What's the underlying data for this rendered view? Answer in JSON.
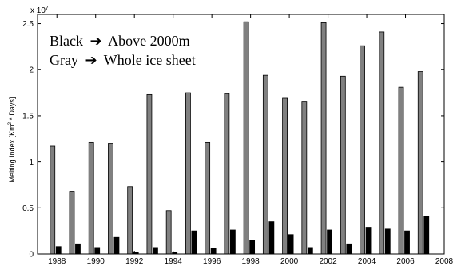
{
  "chart_data": {
    "type": "bar",
    "ylabel_main": "Melting Index [Km",
    "ylabel_sup": "2",
    "ylabel_tail": " * Days]",
    "y_exponent_base": "x 10",
    "y_exponent_power": "7",
    "xlim": [
      1987,
      2008
    ],
    "ylim": [
      0,
      2.6
    ],
    "x_ticks": [
      1988,
      1990,
      1992,
      1994,
      1996,
      1998,
      2000,
      2002,
      2004,
      2006,
      2008
    ],
    "y_ticks": [
      0,
      0.5,
      1,
      1.5,
      2,
      2.5
    ],
    "y_tick_labels": [
      "0",
      "0.5",
      "1",
      "1.5",
      "2",
      "2.5"
    ],
    "years": [
      1988,
      1989,
      1990,
      1991,
      1992,
      1993,
      1994,
      1995,
      1996,
      1997,
      1998,
      1999,
      2000,
      2001,
      2002,
      2003,
      2004,
      2005,
      2006,
      2007
    ],
    "series": [
      {
        "key": "whole",
        "color": "#808080",
        "values": [
          1.17,
          0.68,
          1.21,
          1.2,
          0.73,
          1.73,
          0.47,
          1.75,
          1.21,
          1.74,
          2.52,
          1.94,
          1.69,
          1.65,
          2.51,
          1.93,
          2.26,
          2.41,
          1.81,
          1.98
        ]
      },
      {
        "key": "above2000",
        "color": "#000000",
        "values": [
          0.08,
          0.11,
          0.07,
          0.18,
          0.02,
          0.07,
          0.02,
          0.25,
          0.06,
          0.26,
          0.15,
          0.35,
          0.21,
          0.07,
          0.26,
          0.11,
          0.29,
          0.27,
          0.25,
          0.41
        ]
      }
    ],
    "legend_lines": [
      {
        "left": "Black",
        "right": "Above 2000m"
      },
      {
        "left": "Gray",
        "right": "Whole ice sheet"
      }
    ],
    "grid": false
  }
}
